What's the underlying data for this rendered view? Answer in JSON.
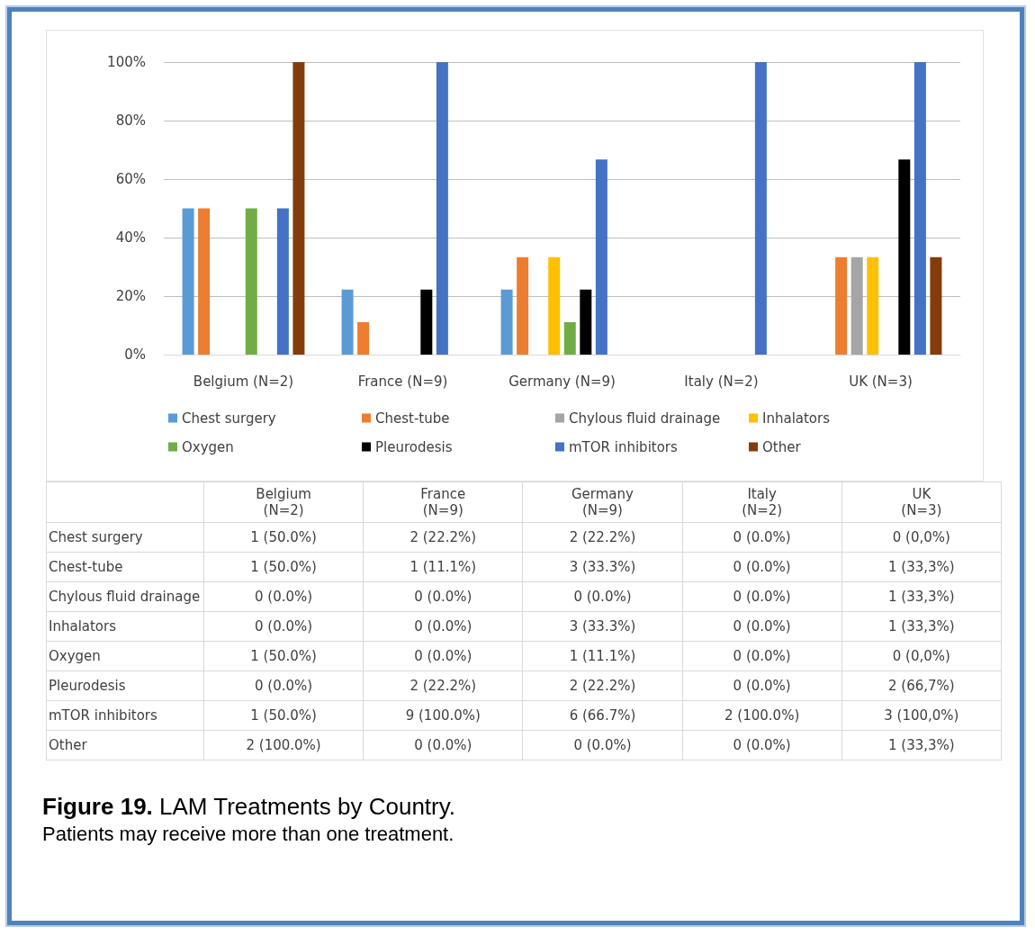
{
  "chart_data": {
    "type": "bar",
    "title": "Figure 19. LAM Treatments by Country.",
    "subtitle": "Patients may receive more than one treatment.",
    "categories": [
      "Belgium (N=2)",
      "France (N=9)",
      "Germany (N=9)",
      "Italy (N=2)",
      "UK (N=3)"
    ],
    "series": [
      {
        "name": "Chest surgery",
        "color": "#5b9bd5",
        "values": [
          50,
          22.2,
          22.2,
          0,
          0
        ],
        "value_labels": [
          "1 (50.0%)",
          "2 (22.2%)",
          "2 (22.2%)",
          "0 (0.0%)",
          "0 (0,0%)"
        ]
      },
      {
        "name": "Chest-tube",
        "color": "#ed7d31",
        "values": [
          50,
          11.1,
          33.3,
          0,
          33.3
        ],
        "value_labels": [
          "1 (50.0%)",
          "1 (11.1%)",
          "3 (33.3%)",
          "0 (0.0%)",
          "1 (33,3%)"
        ]
      },
      {
        "name": "Chylous fluid drainage",
        "color": "#a5a5a5",
        "values": [
          0,
          0,
          0,
          0,
          33.3
        ],
        "value_labels": [
          "0 (0.0%)",
          "0 (0.0%)",
          "0 (0.0%)",
          "0 (0.0%)",
          "1 (33,3%)"
        ]
      },
      {
        "name": "Inhalators",
        "color": "#ffc000",
        "values": [
          0,
          0,
          33.3,
          0,
          33.3
        ],
        "value_labels": [
          "0 (0.0%)",
          "0 (0.0%)",
          "3 (33.3%)",
          "0 (0.0%)",
          "1 (33,3%)"
        ]
      },
      {
        "name": "Oxygen",
        "color": "#70ad47",
        "values": [
          50,
          0,
          11.1,
          0,
          0
        ],
        "value_labels": [
          "1 (50.0%)",
          "0 (0.0%)",
          "1 (11.1%)",
          "0 (0.0%)",
          "0 (0,0%)"
        ]
      },
      {
        "name": "Pleurodesis",
        "color": "#000000",
        "values": [
          0,
          22.2,
          22.2,
          0,
          66.7
        ],
        "value_labels": [
          "0 (0.0%)",
          "2 (22.2%)",
          "2 (22.2%)",
          "0 (0.0%)",
          "2 (66,7%)"
        ]
      },
      {
        "name": "mTOR inhibitors",
        "color": "#4472c4",
        "values": [
          50,
          100,
          66.7,
          100,
          100
        ],
        "value_labels": [
          "1 (50.0%)",
          "9 (100.0%)",
          "6 (66.7%)",
          "2 (100.0%)",
          "3 (100,0%)"
        ]
      },
      {
        "name": "Other",
        "color": "#843c0c",
        "values": [
          100,
          0,
          0,
          0,
          33.3
        ],
        "value_labels": [
          "2 (100.0%)",
          "0 (0.0%)",
          "0 (0.0%)",
          "0 (0.0%)",
          "1 (33,3%)"
        ]
      }
    ],
    "ylim": [
      0,
      100
    ],
    "yticks": [
      {
        "value": 0,
        "label": "0%"
      },
      {
        "value": 20,
        "label": "20%"
      },
      {
        "value": 40,
        "label": "40%"
      },
      {
        "value": 60,
        "label": "60%"
      },
      {
        "value": 80,
        "label": "80%"
      },
      {
        "value": 100,
        "label": "100%"
      }
    ],
    "grid": "y",
    "legend": "bottom"
  }
}
